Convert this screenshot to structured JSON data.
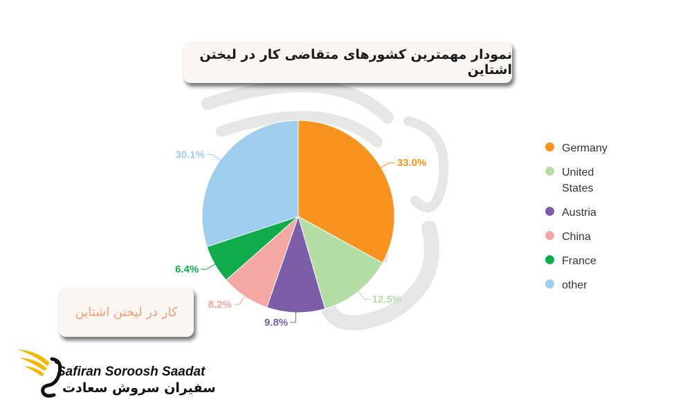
{
  "title": "نمودار مهمترین کشورهای متقاضی کار در لیختن اشتاین",
  "subtitle_box": "کار در لیختن اشتاین",
  "logo": {
    "name_en": "Safiran Soroosh Saadat",
    "name_fa": "سفیران سروش سعادت",
    "accent_color": "#f2b705"
  },
  "chart_data": {
    "type": "pie",
    "title": "نمودار مهمترین کشورهای متقاضی کار در لیختن اشتاین",
    "legend_position": "right",
    "slices": [
      {
        "label": "Germany",
        "value": 33.0,
        "display": "33.0%",
        "color": "#f7931e"
      },
      {
        "label": "United States",
        "value": 12.5,
        "display": "12.5%",
        "color": "#b3dda5"
      },
      {
        "label": "Austria",
        "value": 9.8,
        "display": "9.8%",
        "color": "#7b5ea7"
      },
      {
        "label": "China",
        "value": 8.2,
        "display": "8.2%",
        "color": "#f4a7a3"
      },
      {
        "label": "France",
        "value": 6.4,
        "display": "6.4%",
        "color": "#10ac4b"
      },
      {
        "label": "other",
        "value": 30.1,
        "display": "30.1%",
        "color": "#9fcdee"
      }
    ]
  }
}
